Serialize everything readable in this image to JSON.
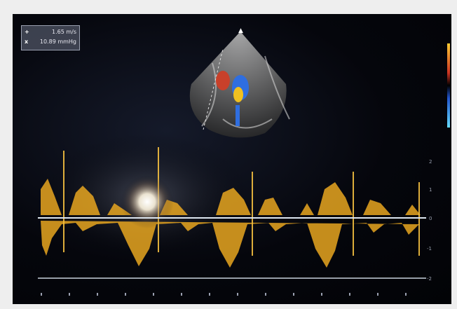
{
  "measurement": {
    "row1_marker": "+",
    "row1_value": "1.65 m/s",
    "row2_marker": "x",
    "row2_value": "10.89 mmHg"
  },
  "colors": {
    "doppler_signal": "#e8a620",
    "baseline": "#dde6f0",
    "sector": "#9a9a9a",
    "flow_red": "#c8402a",
    "flow_blue": "#2f6ee0",
    "flow_yellow": "#f0c020"
  },
  "velocity_scale": [
    "2",
    "1",
    "0",
    "-1",
    "-2"
  ]
}
